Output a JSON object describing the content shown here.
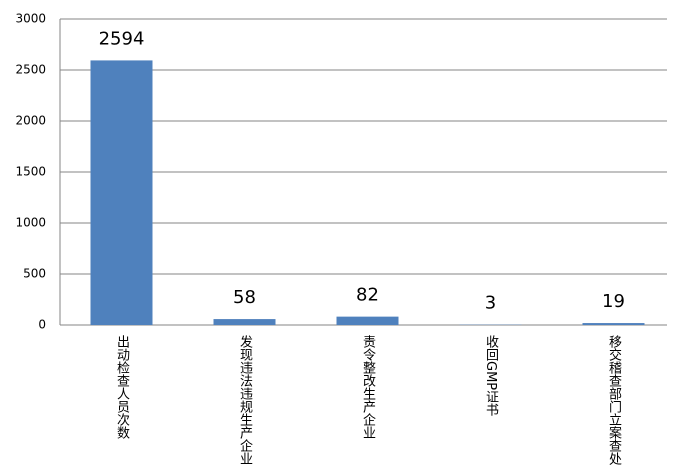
{
  "chart_data": {
    "type": "bar",
    "categories": [
      "出动检查人员次数",
      "发现违法违规生产企业",
      "责令整改生产企业",
      "收回GMP证书",
      "移交稽查部门立案查处"
    ],
    "values": [
      2594,
      58,
      82,
      3,
      19
    ],
    "color": "#4f81bd",
    "ylim": [
      0,
      3000
    ],
    "yticks": [
      0,
      500,
      1000,
      1500,
      2000,
      2500,
      3000
    ],
    "grid": true
  }
}
